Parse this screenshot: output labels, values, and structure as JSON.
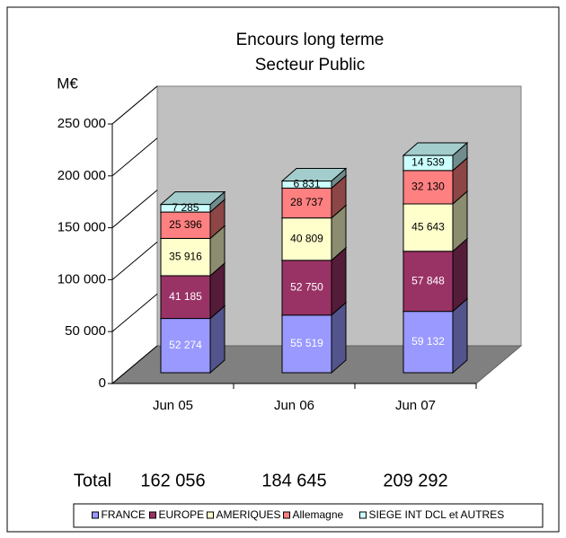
{
  "chart_data": {
    "type": "bar3d_stacked",
    "title": "Encours long terme",
    "subtitle": "Secteur Public",
    "y_label": "M€",
    "categories": [
      "Jun 05",
      "Jun 06",
      "Jun 07"
    ],
    "series": [
      {
        "name": "FRANCE",
        "color": "#9999ff",
        "values": [
          52274,
          55519,
          59132
        ],
        "value_labels": [
          "52 274",
          "55 519",
          "59 132"
        ]
      },
      {
        "name": "EUROPE",
        "color": "#993366",
        "values": [
          41185,
          52750,
          57848
        ],
        "value_labels": [
          "41 185",
          "52 750",
          "57 848"
        ]
      },
      {
        "name": "AMERIQUES",
        "color": "#ffffcc",
        "values": [
          35916,
          40809,
          45643
        ],
        "value_labels": [
          "35 916",
          "40 809",
          "45 643"
        ]
      },
      {
        "name": "Allemagne",
        "color": "#ff8080",
        "values": [
          25396,
          28737,
          32130
        ],
        "value_labels": [
          "25 396",
          "28 737",
          "32 130"
        ]
      },
      {
        "name": "SIEGE INT DCL et AUTRES",
        "color": "#ccffff",
        "values": [
          7285,
          6831,
          14539
        ],
        "value_labels": [
          "7 285",
          "6 831",
          "14 539"
        ]
      }
    ],
    "ylim": [
      0,
      250000
    ],
    "yticks": [
      0,
      {
        "value": 50000,
        "label": "50 000"
      },
      {
        "value": 100000,
        "label": "100 000"
      },
      {
        "value": 150000,
        "label": "150 000"
      },
      {
        "value": 200000,
        "label": "200 000"
      },
      {
        "value": 250000,
        "label": "250 000"
      }
    ],
    "grid": false,
    "totals_label": "Total",
    "totals": [
      "162 056",
      "184 645",
      "209 292"
    ],
    "legend": "bottom"
  }
}
